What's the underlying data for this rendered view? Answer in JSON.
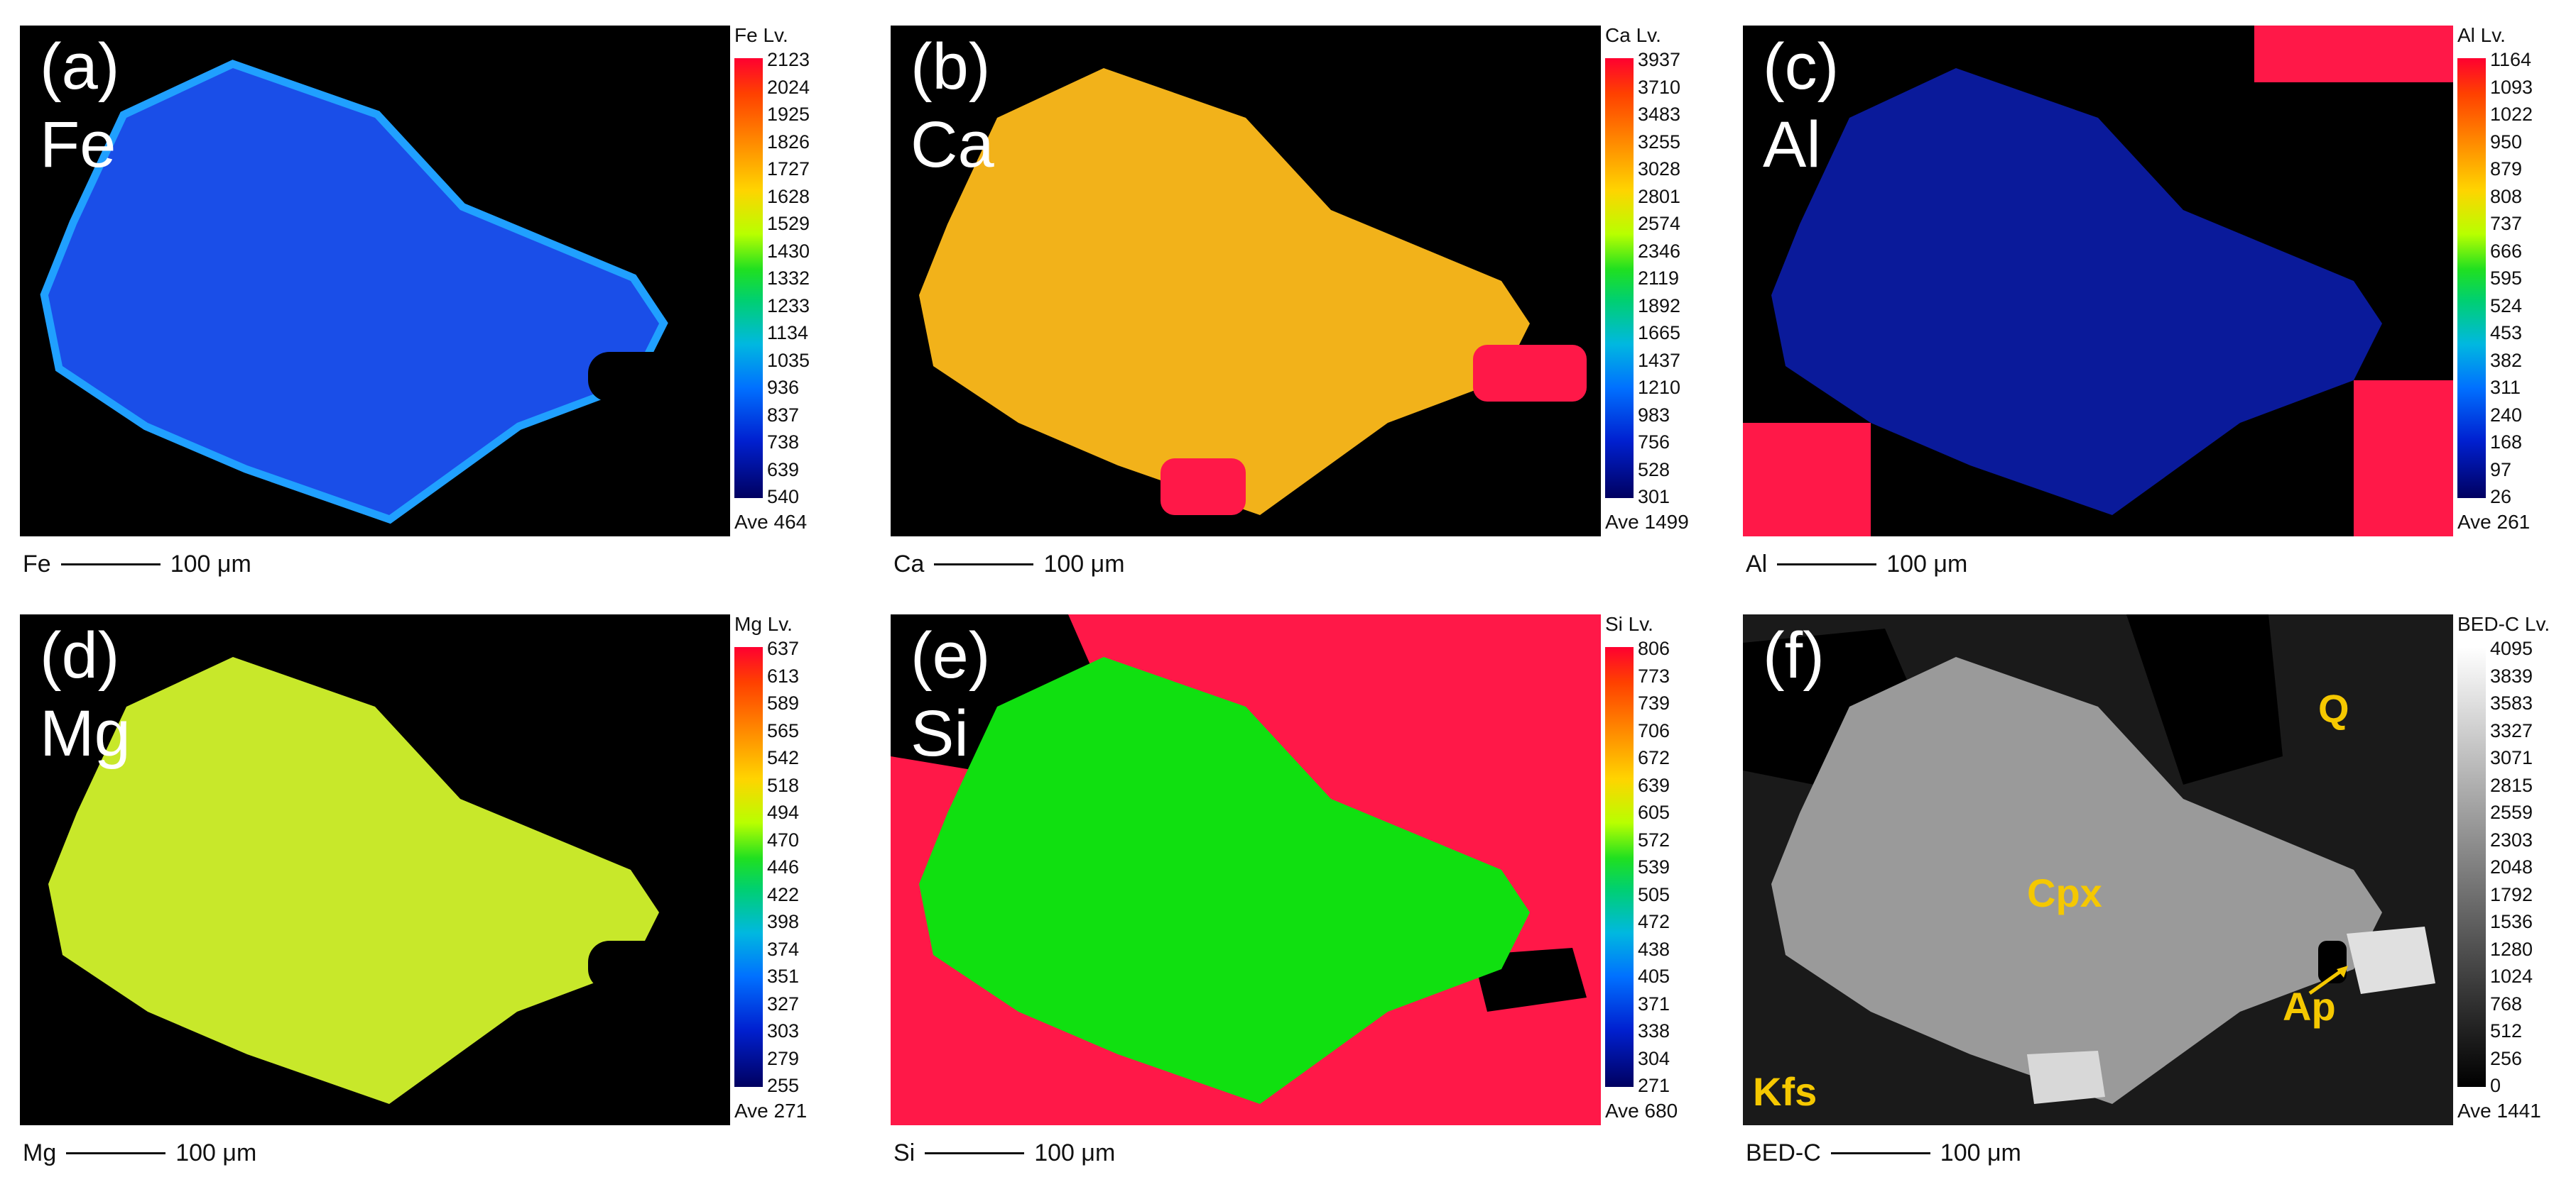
{
  "panels": [
    {
      "id": "a",
      "label": "(a)",
      "element": "Fe",
      "cbar_title": "Fe  Lv.",
      "ticks": [
        "2123",
        "2024",
        "1925",
        "1826",
        "1727",
        "1628",
        "1529",
        "1430",
        "1332",
        "1233",
        "1134",
        "1035",
        "936",
        "837",
        "738",
        "639",
        "540"
      ],
      "ave": "Ave 464",
      "scale_elem": "Fe",
      "scale_text": "100 μm",
      "colormap": "rainbow",
      "fill": "#1a4ee8",
      "rim": "#20a0ff"
    },
    {
      "id": "b",
      "label": "(b)",
      "element": "Ca",
      "cbar_title": "Ca  Lv.",
      "ticks": [
        "3937",
        "3710",
        "3483",
        "3255",
        "3028",
        "2801",
        "2574",
        "2346",
        "2119",
        "1892",
        "1665",
        "1437",
        "1210",
        "983",
        "756",
        "528",
        "301"
      ],
      "ave": "Ave 1499",
      "scale_elem": "Ca",
      "scale_text": "100 μm",
      "colormap": "rainbow",
      "fill": "#f2b21a",
      "rim": "#e8d020"
    },
    {
      "id": "c",
      "label": "(c)",
      "element": "Al",
      "cbar_title": "Al  Lv.",
      "ticks": [
        "1164",
        "1093",
        "1022",
        "950",
        "879",
        "808",
        "737",
        "666",
        "595",
        "524",
        "453",
        "382",
        "311",
        "240",
        "168",
        "97",
        "26"
      ],
      "ave": "Ave 261",
      "scale_elem": "Al",
      "scale_text": "100 μm",
      "colormap": "rainbow",
      "fill": "#0a1a9a",
      "rim": "#1060ff"
    },
    {
      "id": "d",
      "label": "(d)",
      "element": "Mg",
      "cbar_title": "Mg  Lv.",
      "ticks": [
        "637",
        "613",
        "589",
        "565",
        "542",
        "518",
        "494",
        "470",
        "446",
        "422",
        "398",
        "374",
        "351",
        "327",
        "303",
        "279",
        "255"
      ],
      "ave": "Ave 271",
      "scale_elem": "Mg",
      "scale_text": "100 μm",
      "colormap": "rainbow",
      "fill": "#c8e82a",
      "rim": "#f0d020"
    },
    {
      "id": "e",
      "label": "(e)",
      "element": "Si",
      "cbar_title": "Si  Lv.",
      "ticks": [
        "806",
        "773",
        "739",
        "706",
        "672",
        "639",
        "605",
        "572",
        "539",
        "505",
        "472",
        "438",
        "405",
        "371",
        "338",
        "304",
        "271"
      ],
      "ave": "Ave 680",
      "scale_elem": "Si",
      "scale_text": "100 μm",
      "colormap": "rainbow",
      "fill": "#10e010",
      "rim": "#1060e0"
    },
    {
      "id": "f",
      "label": "(f)",
      "element": "",
      "cbar_title": "BED-C  Lv.",
      "ticks": [
        "4095",
        "3839",
        "3583",
        "3327",
        "3071",
        "2815",
        "2559",
        "2303",
        "2048",
        "1792",
        "1536",
        "1280",
        "1024",
        "768",
        "512",
        "256",
        "0"
      ],
      "ave": "Ave 1441",
      "scale_elem": "BED-C",
      "scale_text": "100 μm",
      "colormap": "gray",
      "fill": "#9a9a9a",
      "rim": "#7a7a7a",
      "annotations": [
        "Q",
        "Cpx",
        "Ap",
        "Kfs"
      ]
    }
  ]
}
